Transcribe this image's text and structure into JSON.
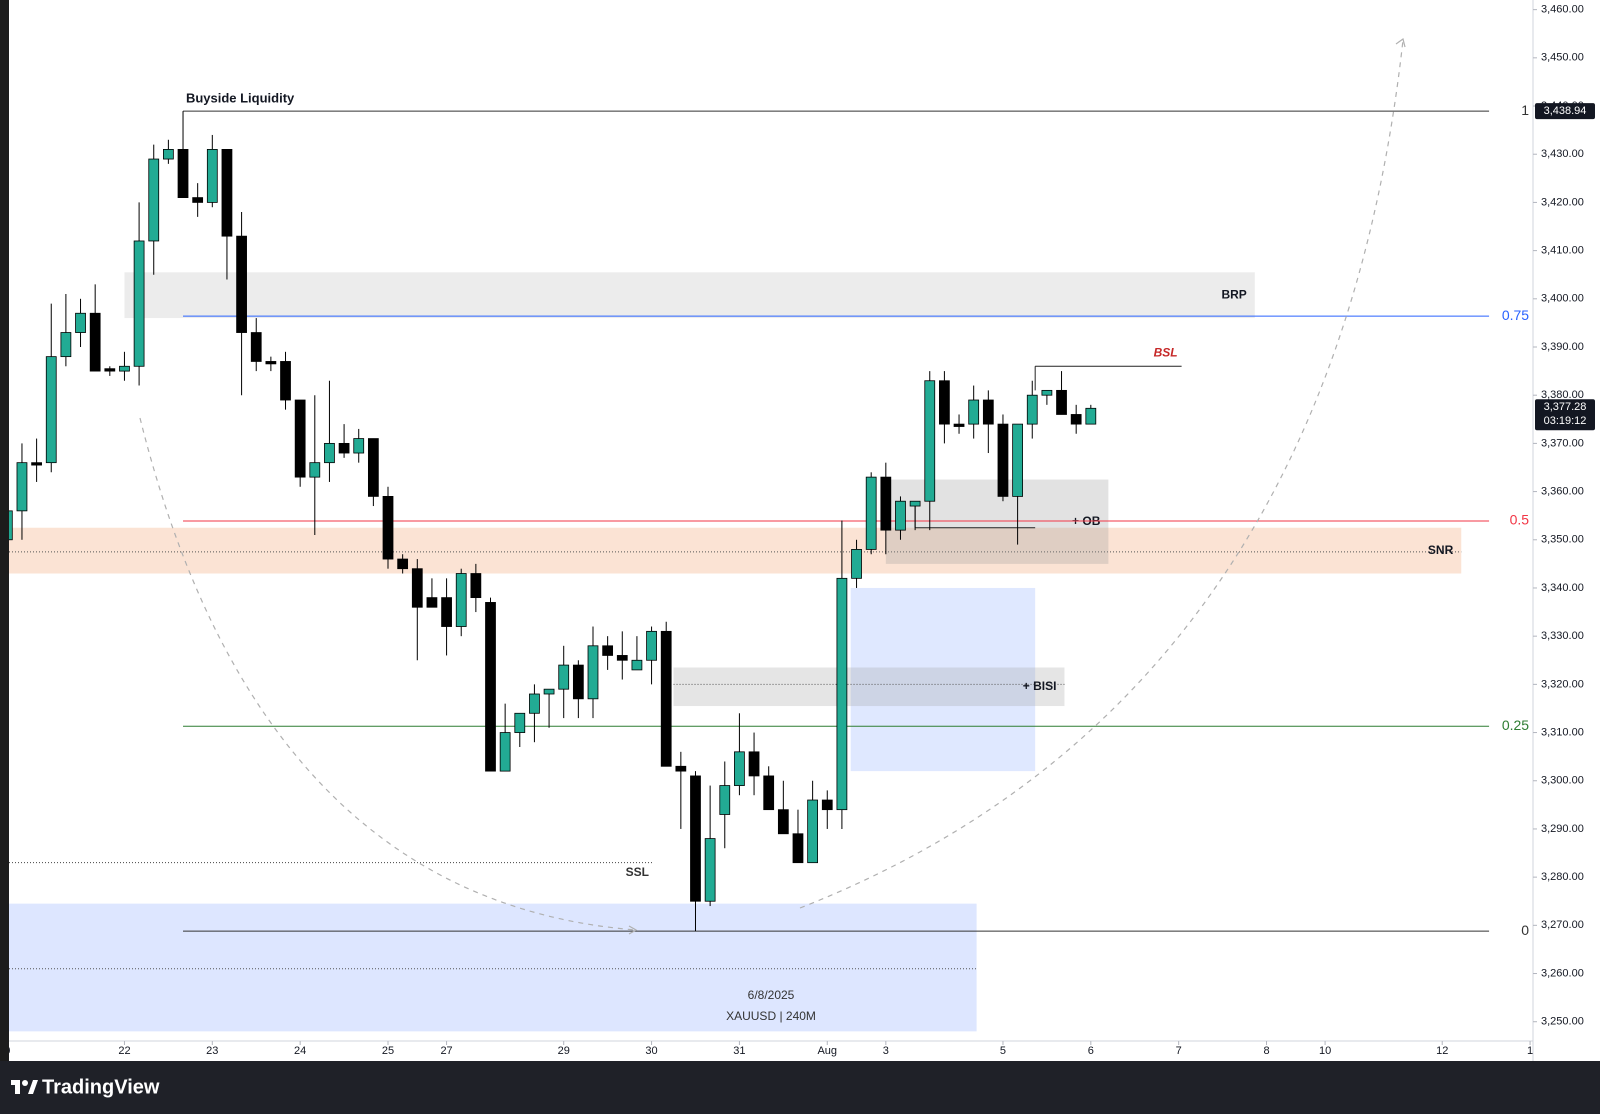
{
  "chart_data": {
    "type": "candlestick",
    "up_color": "#22ab94",
    "down_color": "#000000",
    "x": [
      0,
      1,
      2,
      3,
      4,
      5,
      6,
      7,
      8,
      9,
      10,
      11,
      12,
      13,
      14,
      15,
      16,
      17,
      18,
      19,
      20,
      21,
      22,
      23,
      24,
      25,
      26,
      27,
      28,
      29,
      30,
      31,
      32,
      33,
      34,
      35,
      36,
      37,
      38,
      39,
      40,
      41,
      42,
      43,
      44,
      45,
      46,
      47,
      48,
      49,
      50,
      51,
      52,
      53,
      54,
      55,
      56,
      57,
      58,
      59,
      60,
      61,
      62,
      63,
      64,
      65,
      66,
      67,
      68,
      69,
      70,
      71,
      72,
      73,
      74
    ],
    "open": [
      3350,
      3356,
      3366,
      3366,
      3388,
      3393,
      3397,
      3385.5,
      3385,
      3386,
      3412,
      3429,
      3431,
      3421,
      3420,
      3431,
      3413,
      3393,
      3387,
      3387,
      3379,
      3363,
      3366,
      3370,
      3368,
      3371,
      3359,
      3346,
      3344,
      3338,
      3338,
      3332,
      3343,
      3337,
      3302,
      3310,
      3314,
      3318,
      3319,
      3324,
      3317,
      3328,
      3326,
      3323,
      3325,
      3331,
      3303,
      3301,
      3275,
      3293,
      3299,
      3306,
      3301,
      3294,
      3289,
      3283,
      3296,
      3294,
      3342,
      3348,
      3363,
      3352,
      3357,
      3358,
      3383,
      3374,
      3374,
      3379,
      3374,
      3359,
      3374,
      3380,
      3381,
      3376,
      3374
    ],
    "high": [
      3357,
      3370,
      3371,
      3399,
      3401,
      3400,
      3403,
      3386,
      3389,
      3420,
      3432,
      3433,
      3438.94,
      3424,
      3434,
      3431,
      3418,
      3396,
      3388,
      3389,
      3379,
      3380,
      3383,
      3374,
      3373,
      3371,
      3361,
      3347,
      3346,
      3342,
      3342,
      3344,
      3345,
      3338,
      3316,
      3314,
      3320,
      3319,
      3328,
      3325,
      3332,
      3330,
      3331,
      3330,
      3332,
      3333,
      3306,
      3302,
      3299,
      3304,
      3314,
      3310,
      3303,
      3300,
      3294,
      3300,
      3298,
      3354,
      3350,
      3364,
      3366,
      3359,
      3358,
      3385,
      3385,
      3376,
      3382,
      3381,
      3376,
      3374,
      3383,
      3381,
      3385,
      3378,
      3378
    ],
    "low": [
      3347,
      3350,
      3362,
      3364,
      3386,
      3390,
      3385,
      3384,
      3383,
      3382,
      3405,
      3428,
      3421,
      3417,
      3419,
      3404,
      3380,
      3385,
      3385,
      3377,
      3361,
      3351,
      3362,
      3367,
      3366,
      3357,
      3344,
      3343,
      3325,
      3336,
      3326,
      3330,
      3335,
      3302,
      3302,
      3307,
      3308,
      3311,
      3313,
      3313,
      3313,
      3323,
      3321,
      3323,
      3320,
      3303,
      3290,
      3268.8,
      3274,
      3286,
      3297,
      3297,
      3294,
      3289,
      3283,
      3283,
      3290,
      3290,
      3340,
      3347,
      3347,
      3350,
      3352,
      3352,
      3370,
      3372,
      3371,
      3368,
      3358,
      3349,
      3371,
      3378,
      3376,
      3372,
      3374
    ],
    "close": [
      3356,
      3366,
      3365.5,
      3388,
      3393,
      3397,
      3385,
      3385,
      3386,
      3412,
      3429,
      3431,
      3421,
      3420,
      3431,
      3413,
      3393,
      3387,
      3386.5,
      3379,
      3363,
      3366,
      3370,
      3368,
      3371,
      3359,
      3346,
      3344,
      3336,
      3336,
      3332,
      3343,
      3338,
      3302,
      3310,
      3314,
      3318,
      3319,
      3324,
      3317,
      3328,
      3326,
      3325,
      3325,
      3331,
      3303,
      3302,
      3275,
      3288,
      3299,
      3306,
      3301,
      3294,
      3289,
      3283,
      3296,
      3294,
      3342,
      3348,
      3363,
      3352,
      3358,
      3358,
      3383,
      3374,
      3373.5,
      3379,
      3374,
      3359,
      3374,
      3380,
      3381,
      3376,
      3374,
      3377.28
    ],
    "xlim": [
      -0.5,
      104.2
    ],
    "ylim": [
      3246,
      3462
    ],
    "xticks": [
      {
        "value": 0,
        "label": "0"
      },
      {
        "value": 8,
        "label": "22"
      },
      {
        "value": 14,
        "label": "23"
      },
      {
        "value": 20,
        "label": "24"
      },
      {
        "value": 26,
        "label": "25"
      },
      {
        "value": 30,
        "label": "27"
      },
      {
        "value": 38,
        "label": "29"
      },
      {
        "value": 44,
        "label": "30"
      },
      {
        "value": 50,
        "label": "31"
      },
      {
        "value": 56,
        "label": "Aug"
      },
      {
        "value": 60,
        "label": "3"
      },
      {
        "value": 68,
        "label": "5"
      },
      {
        "value": 74,
        "label": "6"
      },
      {
        "value": 80,
        "label": "7"
      },
      {
        "value": 86,
        "label": "8"
      },
      {
        "value": 90,
        "label": "10"
      },
      {
        "value": 98,
        "label": "12"
      },
      {
        "value": 104,
        "label": "1"
      }
    ],
    "yticks": [
      {
        "value": 3250,
        "label": "3,250.00"
      },
      {
        "value": 3260,
        "label": "3,260.00"
      },
      {
        "value": 3270,
        "label": "3,270.00"
      },
      {
        "value": 3280,
        "label": "3,280.00"
      },
      {
        "value": 3290,
        "label": "3,290.00"
      },
      {
        "value": 3300,
        "label": "3,300.00"
      },
      {
        "value": 3310,
        "label": "3,310.00"
      },
      {
        "value": 3320,
        "label": "3,320.00"
      },
      {
        "value": 3330,
        "label": "3,330.00"
      },
      {
        "value": 3340,
        "label": "3,340.00"
      },
      {
        "value": 3350,
        "label": "3,350.00"
      },
      {
        "value": 3360,
        "label": "3,360.00"
      },
      {
        "value": 3370,
        "label": "3,370.00"
      },
      {
        "value": 3380,
        "label": "3,380.00"
      },
      {
        "value": 3390,
        "label": "3,390.00"
      },
      {
        "value": 3400,
        "label": "3,400.00"
      },
      {
        "value": 3410,
        "label": "3,410.00"
      },
      {
        "value": 3420,
        "label": "3,420.00"
      },
      {
        "value": 3430,
        "label": "3,430.00"
      },
      {
        "value": 3440,
        "label": "3,440.00"
      },
      {
        "value": 3450,
        "label": "3,450.00"
      },
      {
        "value": 3460,
        "label": "3,460.00"
      }
    ],
    "fib_x": [
      12,
      101.2
    ],
    "fib_levels": [
      {
        "ratio": 1,
        "price": 3438.94,
        "color": "#333333"
      },
      {
        "ratio": 0.75,
        "price": 3396.4,
        "color": "#2962ff"
      },
      {
        "ratio": 0.5,
        "price": 3353.9,
        "color": "#f23645"
      },
      {
        "ratio": 0.25,
        "price": 3311.3,
        "color": "#2e7d32"
      },
      {
        "ratio": 0,
        "price": 3268.8,
        "color": "#333333"
      }
    ],
    "zones": [
      {
        "label": "BRP",
        "ylim": [
          3396,
          3405.5
        ],
        "xlim": [
          8,
          85.2
        ],
        "color": "#ececec"
      },
      {
        "label": "SNR",
        "ylim": [
          3343,
          3352.5
        ],
        "xlim": [
          -0.5,
          99.3
        ],
        "color": "#fbe3d4",
        "line": 3347.5
      },
      {
        "label": "+ OB",
        "ylim": [
          3345,
          3362.5
        ],
        "xlim": [
          60,
          75.2
        ],
        "color": "rgba(150,150,150,0.28)"
      },
      {
        "ylim": [
          3302,
          3340
        ],
        "xlim": [
          57.6,
          70.2
        ],
        "color": "rgba(41,98,255,0.15)"
      },
      {
        "label": "+ BISI",
        "ylim": [
          3315.5,
          3323.5
        ],
        "xlim": [
          45.5,
          72.2
        ],
        "color": "rgba(150,150,150,0.25)",
        "line": 3320
      },
      {
        "ylim": [
          3248,
          3274.5
        ],
        "xlim": [
          -0.5,
          66.2
        ],
        "color": "rgba(41,98,255,0.16)",
        "line": 3261
      }
    ],
    "lines": [
      {
        "label": "SSL",
        "y": 3283,
        "xlim": [
          -0.5,
          44.1
        ],
        "style": "dotted",
        "color": "#333333"
      },
      {
        "label": "BSL",
        "y": 3386,
        "xlim": [
          70.2,
          80.2
        ],
        "style": "solid",
        "color": "#c62828",
        "drop": 3381
      },
      {
        "y": 3352.5,
        "xlim": [
          62,
          70.2
        ],
        "style": "solid",
        "color": "#000000",
        "drop": 3358
      }
    ],
    "annotations": [
      {
        "text": "Buyside Liquidity",
        "x": 12.2,
        "y": 3438.94
      }
    ],
    "high_tag": {
      "value": 3438.94,
      "label": "3,438.94"
    },
    "last_price": {
      "value": 3377.28,
      "label": "3,377.28",
      "countdown": "03:19:12"
    },
    "watermark": [
      "6/8/2025",
      "XAUUSD | 240M"
    ]
  },
  "footer": {
    "brand": "TradingView"
  }
}
